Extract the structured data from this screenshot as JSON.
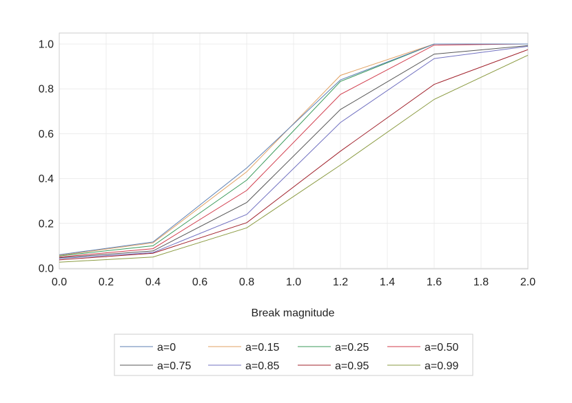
{
  "chart_data": {
    "type": "line",
    "title": "",
    "xlabel": "Break magnitude",
    "ylabel": "",
    "xlim": [
      0.0,
      2.0
    ],
    "ylim": [
      0.0,
      1.05
    ],
    "x": [
      0.0,
      0.4,
      0.8,
      1.2,
      1.6,
      2.0
    ],
    "x_ticks": [
      "0.0",
      "0.2",
      "0.4",
      "0.6",
      "0.8",
      "1.0",
      "1.2",
      "1.4",
      "1.6",
      "1.8",
      "2.0"
    ],
    "y_ticks": [
      "0.0",
      "0.2",
      "0.4",
      "0.6",
      "0.8",
      "1.0"
    ],
    "grid": true,
    "legend_position": "bottom",
    "series": [
      {
        "name": "a=0",
        "color": "#5b7fb3",
        "values": [
          0.06,
          0.117,
          0.447,
          0.84,
          1.0,
          1.0
        ]
      },
      {
        "name": "a=0.15",
        "color": "#e0a060",
        "values": [
          0.057,
          0.113,
          0.43,
          0.86,
          1.0,
          1.0
        ]
      },
      {
        "name": "a=0.25",
        "color": "#3a9a5a",
        "values": [
          0.055,
          0.1,
          0.393,
          0.833,
          1.0,
          1.0
        ]
      },
      {
        "name": "a=0.50",
        "color": "#d03a4a",
        "values": [
          0.05,
          0.087,
          0.347,
          0.775,
          0.995,
          1.0
        ]
      },
      {
        "name": "a=0.75",
        "color": "#555555",
        "values": [
          0.047,
          0.077,
          0.293,
          0.708,
          0.955,
          0.993
        ]
      },
      {
        "name": "a=0.85",
        "color": "#6f6fc0",
        "values": [
          0.043,
          0.07,
          0.24,
          0.65,
          0.935,
          0.99
        ]
      },
      {
        "name": "a=0.95",
        "color": "#a0202a",
        "values": [
          0.037,
          0.067,
          0.203,
          0.522,
          0.82,
          0.975
        ]
      },
      {
        "name": "a=0.99",
        "color": "#8a9a40",
        "values": [
          0.027,
          0.05,
          0.18,
          0.46,
          0.753,
          0.95
        ]
      }
    ]
  }
}
